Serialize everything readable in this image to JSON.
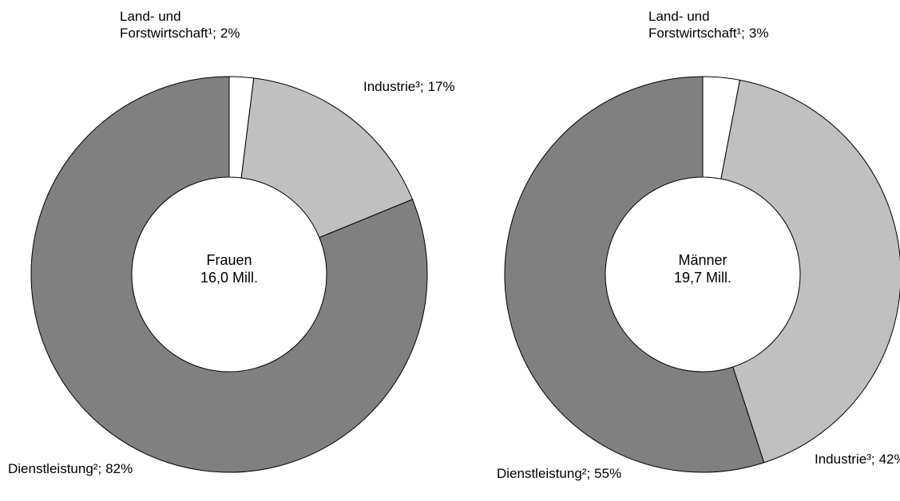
{
  "chart_data": [
    {
      "type": "donut",
      "title": "Frauen",
      "subtitle": "16,0 Mill.",
      "categories": [
        "Land- und Forstwirtschaft¹;",
        "Industrie³;",
        "Dienstleistung²;"
      ],
      "values": [
        2,
        17,
        82
      ],
      "value_labels": [
        "2%",
        "17%",
        "82%"
      ],
      "colors": [
        "#ffffff",
        "#c0c0c0",
        "#808080"
      ]
    },
    {
      "type": "donut",
      "title": "Männer",
      "subtitle": "19,7 Mill.",
      "categories": [
        "Land- und Forstwirtschaft¹;",
        "Industrie³;",
        "Dienstleistung²;"
      ],
      "values": [
        3,
        42,
        55
      ],
      "value_labels": [
        "3%",
        "42%",
        "55%"
      ],
      "colors": [
        "#ffffff",
        "#c0c0c0",
        "#808080"
      ]
    }
  ]
}
